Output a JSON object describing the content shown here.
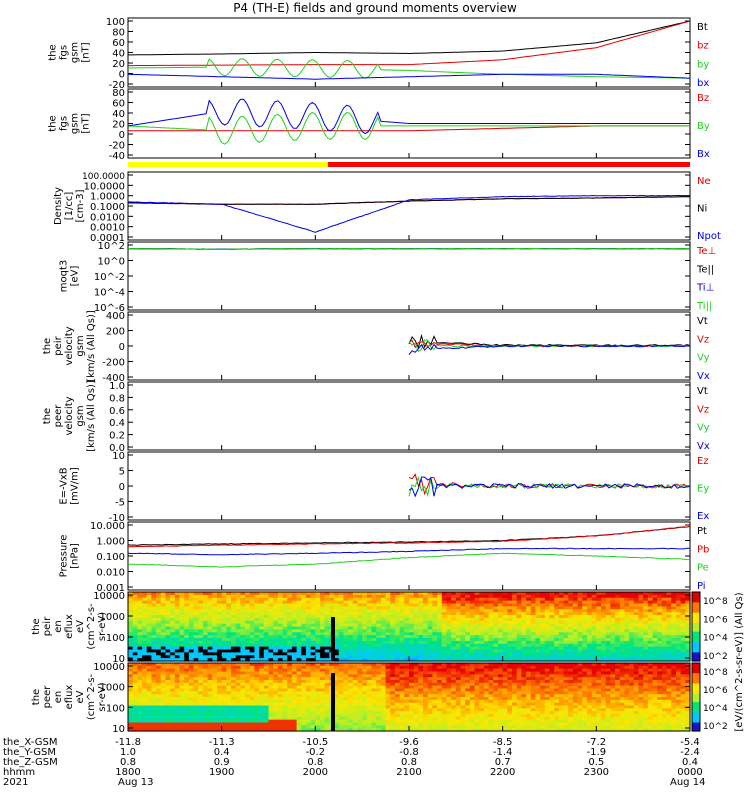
{
  "title": "P4 (TH-E) fields and ground moments overview",
  "colors": {
    "black": "#000000",
    "red": "#e00000",
    "green": "#20d020",
    "blue": "#0000e0",
    "mode_yellow": "#ffff00",
    "mode_red": "#ff0000"
  },
  "colorbar_label": "[eV/(cm^2-s-sr-eV)] (All Qs)",
  "colorbar_ticks_top": [
    "10^8",
    "10^6",
    "10^4",
    "10^2"
  ],
  "colorbar_ticks_bottom": [
    "10^8",
    "10^6",
    "10^4",
    "10^2"
  ],
  "time_axis": {
    "rows": [
      {
        "label": "the_X-GSM",
        "values": [
          "-11.8",
          "-11.3",
          "-10.5",
          "-9.6",
          "-8.5",
          "-7.2",
          "-5.4"
        ]
      },
      {
        "label": "the_Y-GSM",
        "values": [
          "1.0",
          "0.4",
          "-0.2",
          "-0.8",
          "-1.4",
          "-1.9",
          "-2.4"
        ]
      },
      {
        "label": "the_Z-GSM",
        "values": [
          "0.8",
          "0.9",
          "0.8",
          "0.8",
          "0.7",
          "0.5",
          "0.4"
        ]
      },
      {
        "label": "hhmm",
        "values": [
          "1800",
          "1900",
          "2000",
          "2100",
          "2200",
          "2300",
          "0000"
        ]
      }
    ],
    "year": "2021",
    "date_start": "Aug 13",
    "date_end": "Aug 14"
  },
  "chart_data": [
    {
      "type": "line",
      "ylabel": "the fgs gsm [nT]",
      "ylim": [
        -30,
        100
      ],
      "yticks": [
        "100",
        "80",
        "60",
        "40",
        "20",
        "0",
        "-20"
      ],
      "x": [
        "1800",
        "1900",
        "2000",
        "2100",
        "2200",
        "2300",
        "0000"
      ],
      "series": [
        {
          "name": "Bt",
          "values": [
            30,
            32,
            35,
            33,
            38,
            55,
            100
          ]
        },
        {
          "name": "bz",
          "values": [
            8,
            9,
            10,
            10,
            20,
            45,
            100
          ]
        },
        {
          "name": "by",
          "values": [
            3,
            5,
            2,
            -2,
            -10,
            -15,
            -18
          ]
        },
        {
          "name": "bx",
          "values": [
            -10,
            -15,
            -20,
            -15,
            -10,
            -10,
            -18
          ]
        }
      ]
    },
    {
      "type": "line",
      "ylabel": "the fgs gsm [nT]",
      "ylim": [
        -50,
        80
      ],
      "yticks": [
        "80",
        "60",
        "40",
        "20",
        "0",
        "-20",
        "-40"
      ],
      "x": [
        "1800",
        "1900",
        "2000",
        "2100",
        "2200",
        "2300",
        "0000"
      ],
      "series": [
        {
          "name": "Bz",
          "values": [
            0,
            0,
            0,
            0,
            5,
            10,
            10
          ]
        },
        {
          "name": "By",
          "values": [
            10,
            0,
            10,
            10,
            10,
            10,
            10
          ]
        },
        {
          "name": "Bx",
          "values": [
            10,
            40,
            30,
            15,
            15,
            15,
            15
          ]
        }
      ]
    },
    {
      "type": "line",
      "ylabel": "Density [1/cc] [cm-3]",
      "yscale": "log",
      "ylim": [
        0.0001,
        100
      ],
      "yticks": [
        "100.0000",
        "10.0000",
        "1.0000",
        "0.1000",
        "0.0100",
        "0.0010",
        "0.0001"
      ],
      "x": [
        "1800",
        "1900",
        "2000",
        "2100",
        "2200",
        "2300",
        "0000"
      ],
      "series": [
        {
          "name": "Ne",
          "values": [
            0.2,
            0.15,
            0.15,
            0.3,
            0.5,
            0.6,
            0.8
          ]
        },
        {
          "name": "Ni",
          "values": [
            0.2,
            0.15,
            0.15,
            0.3,
            0.5,
            0.6,
            0.8
          ]
        },
        {
          "name": "Npot",
          "values": [
            0.25,
            0.15,
            0.0003,
            0.4,
            0.8,
            1.0,
            1.0
          ]
        }
      ]
    },
    {
      "type": "line",
      "ylabel": "moqt3 [eV]",
      "yscale": "log",
      "yticks": [
        "10^2",
        "10^0",
        "10^-2",
        "10^-4",
        "10^-6"
      ],
      "x": [
        "1800",
        "1900",
        "2000",
        "2100",
        "2200",
        "2300",
        "0000"
      ],
      "series": [
        {
          "name": "Te⊥",
          "values": [
            300,
            250,
            300,
            300,
            300,
            300,
            300
          ]
        },
        {
          "name": "Te||",
          "values": [
            300,
            250,
            300,
            300,
            300,
            300,
            300
          ]
        },
        {
          "name": "Ti⊥",
          "values": [
            300,
            250,
            300,
            300,
            300,
            300,
            300
          ]
        },
        {
          "name": "Ti||",
          "values": [
            300,
            250,
            300,
            300,
            300,
            300,
            300
          ]
        }
      ]
    },
    {
      "type": "line",
      "ylabel": "the peir velocity gsm [km/s (All Qs)]",
      "ylim": [
        -400,
        400
      ],
      "yticks": [
        "400",
        "200",
        "0",
        "-200",
        "-400"
      ],
      "x": [
        "1800",
        "1900",
        "2000",
        "2100",
        "2200",
        "2300",
        "0000"
      ],
      "series": [
        {
          "name": "Vt",
          "values": [
            null,
            null,
            null,
            60,
            10,
            10,
            10
          ]
        },
        {
          "name": "Vz",
          "values": [
            null,
            null,
            null,
            40,
            0,
            0,
            0
          ]
        },
        {
          "name": "Vy",
          "values": [
            null,
            null,
            null,
            0,
            0,
            0,
            0
          ]
        },
        {
          "name": "Vx",
          "values": [
            null,
            null,
            null,
            -50,
            0,
            0,
            0
          ]
        }
      ]
    },
    {
      "type": "line",
      "ylabel": "the peer velocity gsm [km/s (All Qs)]",
      "ylim": [
        0,
        1
      ],
      "yticks": [
        "1.0",
        "0.8",
        "0.6",
        "0.4",
        "0.2",
        "0.0"
      ],
      "series": [
        {
          "name": "Vt",
          "values": []
        },
        {
          "name": "Vz",
          "values": []
        },
        {
          "name": "Vy",
          "values": []
        },
        {
          "name": "Vx",
          "values": []
        }
      ]
    },
    {
      "type": "line",
      "ylabel": "E=-VxB [mV/m]",
      "ylim": [
        -10,
        10
      ],
      "yticks": [
        "10",
        "5",
        "0",
        "-5",
        "-10"
      ],
      "x": [
        "1800",
        "1900",
        "2000",
        "2100",
        "2200",
        "2300",
        "0000"
      ],
      "series": [
        {
          "name": "Ez",
          "values": [
            null,
            null,
            null,
            1,
            0,
            0,
            0
          ]
        },
        {
          "name": "Ey",
          "values": [
            null,
            null,
            null,
            0,
            0,
            0,
            0
          ]
        },
        {
          "name": "Ex",
          "values": [
            null,
            null,
            null,
            0,
            0,
            0,
            0
          ]
        }
      ]
    },
    {
      "type": "line",
      "ylabel": "Pressure [nPa]",
      "yscale": "log",
      "ylim": [
        0.001,
        10
      ],
      "yticks": [
        "10.000",
        "1.000",
        "0.100",
        "0.010",
        "0.001"
      ],
      "x": [
        "1800",
        "1900",
        "2000",
        "2100",
        "2200",
        "2300",
        "0000"
      ],
      "series": [
        {
          "name": "Pt",
          "values": [
            0.5,
            0.6,
            0.7,
            0.8,
            1.0,
            2.0,
            8.0
          ]
        },
        {
          "name": "Pb",
          "values": [
            0.4,
            0.5,
            0.6,
            0.7,
            0.9,
            2.0,
            8.0
          ]
        },
        {
          "name": "Pe",
          "values": [
            0.03,
            0.02,
            0.03,
            0.08,
            0.15,
            0.1,
            0.06
          ]
        },
        {
          "name": "Pi",
          "values": [
            0.15,
            0.12,
            0.15,
            0.2,
            0.3,
            0.3,
            0.3
          ]
        }
      ]
    },
    {
      "type": "heatmap",
      "ylabel": "the peir en eflux eV (cm^2-s-sr-eV)",
      "yscale": "log",
      "yticks": [
        "10000",
        "1000",
        "100",
        "10"
      ]
    },
    {
      "type": "heatmap",
      "ylabel": "the peer en eflux eV (cm^2-s-sr-eV)",
      "yscale": "log",
      "yticks": [
        "10000",
        "1000",
        "100",
        "10"
      ]
    }
  ],
  "panel_ylabels": [
    [
      "the",
      "fgs",
      "gsm",
      "[nT]"
    ],
    [
      "the",
      "fgs",
      "gsm",
      "[nT]"
    ],
    [
      "Density",
      "[1/cc]",
      "[cm-3]"
    ],
    [
      "moqt3",
      "[eV]"
    ],
    [
      "the",
      "peir",
      "velocity",
      "gsm",
      "[km/s (All Qs)]"
    ],
    [
      "the",
      "peer",
      "velocity",
      "gsm",
      "[km/s (All Qs)]"
    ],
    [
      "E=-VxB",
      "[mV/m]"
    ],
    [
      "Pressure",
      "[nPa]"
    ],
    [
      "the",
      "peir",
      "en",
      "eflux",
      "eV",
      "(cm^2-s-",
      "sr-eV)"
    ],
    [
      "the",
      "peer",
      "en",
      "eflux",
      "eV",
      "(cm^2-s-",
      "sr-eV)"
    ]
  ]
}
